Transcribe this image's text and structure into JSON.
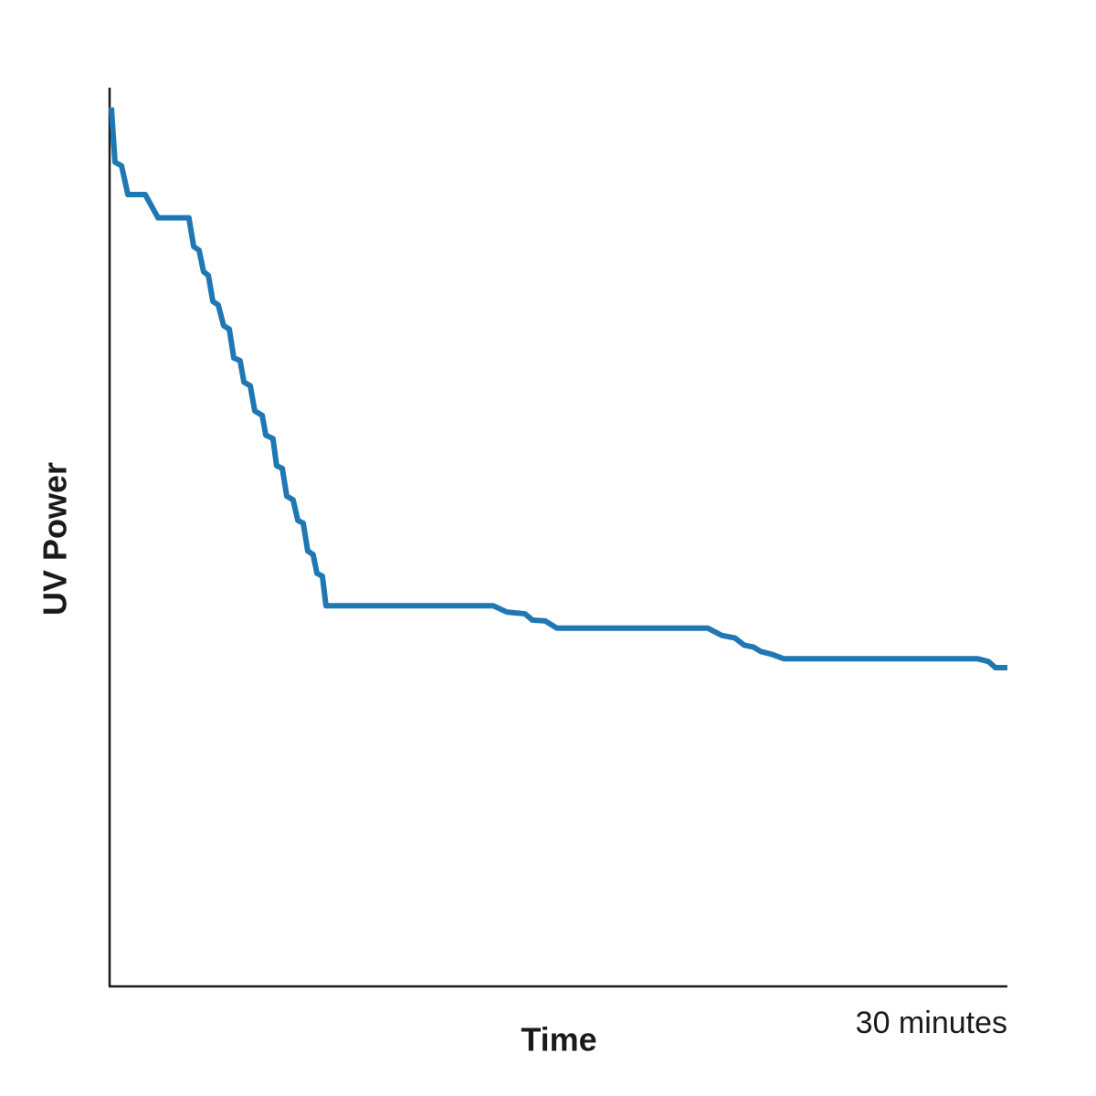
{
  "chart_data": {
    "type": "line",
    "x_label": "Time",
    "y_label": "UV Power",
    "xlim": [
      0,
      30
    ],
    "ylim": [
      0,
      100
    ],
    "xticks": [
      {
        "value": 30,
        "label": "30 minutes"
      }
    ],
    "series": [
      {
        "color": "#1f77b4",
        "x": [
          0.06,
          0.18,
          0.4,
          0.61,
          1.19,
          1.62,
          2.65,
          2.81,
          2.99,
          3.14,
          3.3,
          3.45,
          3.63,
          3.81,
          4.0,
          4.15,
          4.36,
          4.49,
          4.7,
          4.85,
          5.1,
          5.22,
          5.46,
          5.58,
          5.77,
          5.92,
          6.13,
          6.29,
          6.47,
          6.62,
          6.8,
          6.93,
          7.11,
          7.23,
          12.82,
          13.27,
          13.88,
          14.13,
          14.56,
          14.95,
          19.99,
          20.45,
          20.9,
          21.21,
          21.51,
          21.76,
          22.12,
          22.52,
          28.99,
          29.36,
          29.6,
          30.0
        ],
        "values": [
          97.9,
          91.8,
          91.4,
          88.2,
          88.2,
          85.6,
          85.6,
          82.4,
          82.0,
          79.6,
          79.2,
          76.3,
          75.9,
          73.6,
          73.2,
          70.0,
          69.7,
          67.3,
          66.9,
          64.1,
          63.6,
          61.4,
          61.0,
          58.0,
          57.7,
          54.6,
          54.2,
          51.9,
          51.6,
          48.5,
          48.1,
          46.0,
          45.7,
          42.4,
          42.4,
          41.7,
          41.5,
          40.8,
          40.7,
          39.9,
          39.9,
          39.1,
          38.8,
          38.0,
          37.8,
          37.3,
          37.0,
          36.5,
          36.5,
          36.2,
          35.5,
          35.5
        ]
      }
    ]
  }
}
